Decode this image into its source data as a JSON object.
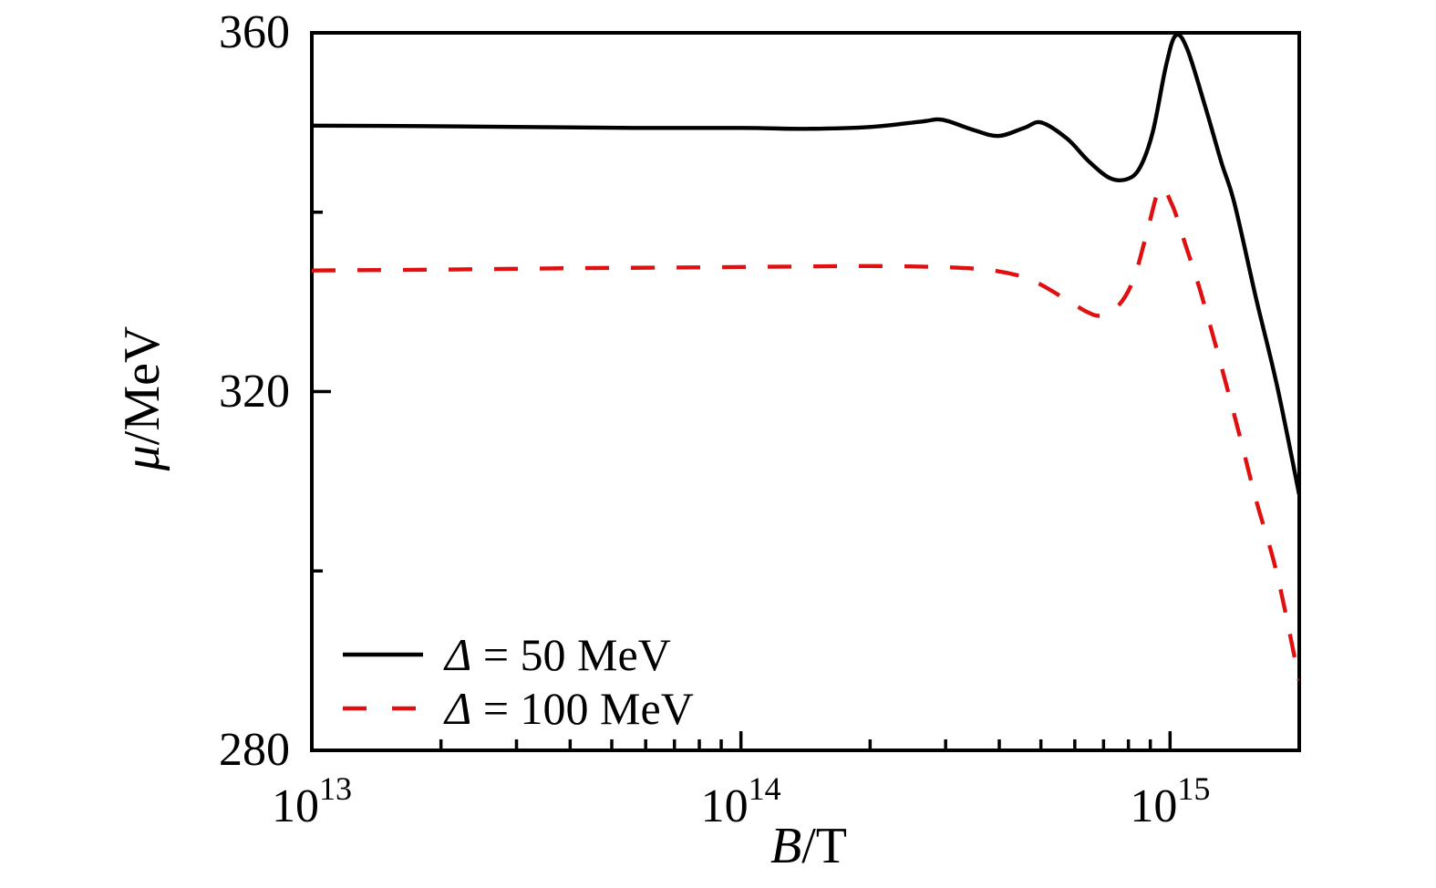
{
  "chart_data": {
    "type": "line",
    "title": "",
    "xlabel": {
      "symbol": "B",
      "rest": "/T"
    },
    "ylabel": {
      "symbol": "μ",
      "rest": "/MeV"
    },
    "grid": false,
    "legend_position": "bottom-left-inside",
    "x_axis": {
      "scale": "log10",
      "min": 10000000000000.0,
      "max": 2000000000000000.0,
      "unit": "T",
      "major_ticks": [
        {
          "log10": 13,
          "base": "10",
          "exp": "13"
        },
        {
          "log10": 14,
          "base": "10",
          "exp": "14"
        },
        {
          "log10": 15,
          "base": "10",
          "exp": "15"
        }
      ],
      "minor_ticks_log10": [
        13.301,
        13.477,
        13.602,
        13.699,
        13.778,
        13.845,
        13.903,
        13.954,
        14.301,
        14.477,
        14.602,
        14.699,
        14.778,
        14.845,
        14.903,
        14.954
      ]
    },
    "y_axis": {
      "scale": "linear",
      "min": 280,
      "max": 360,
      "unit": "MeV",
      "major_ticks": [
        {
          "value": 360,
          "label": "360"
        },
        {
          "value": 320,
          "label": "320"
        },
        {
          "value": 280,
          "label": "280"
        }
      ],
      "minor_tick_values": [
        340,
        300
      ]
    },
    "series": [
      {
        "name": "Δ = 50 MeV",
        "label_symbol": "Δ",
        "label_text": " = 50 MeV",
        "color": "#000000",
        "line_style": "solid",
        "points_log10B_muMeV": [
          [
            13.0,
            349.65
          ],
          [
            13.25,
            349.6
          ],
          [
            13.5,
            349.5
          ],
          [
            13.75,
            349.4
          ],
          [
            14.0,
            349.4
          ],
          [
            14.15,
            349.3
          ],
          [
            14.3,
            349.5
          ],
          [
            14.42,
            350.1
          ],
          [
            14.47,
            350.3
          ],
          [
            14.54,
            349.2
          ],
          [
            14.6,
            348.5
          ],
          [
            14.66,
            349.4
          ],
          [
            14.7,
            350.0
          ],
          [
            14.76,
            348.2
          ],
          [
            14.81,
            345.7
          ],
          [
            14.86,
            343.8
          ],
          [
            14.9,
            343.7
          ],
          [
            14.93,
            345.0
          ],
          [
            14.96,
            349.0
          ],
          [
            14.99,
            356.2
          ],
          [
            15.013,
            359.7
          ],
          [
            15.04,
            358.2
          ],
          [
            15.083,
            351.6
          ],
          [
            15.12,
            345.5
          ],
          [
            15.15,
            341.0
          ],
          [
            15.2,
            330.5
          ],
          [
            15.25,
            320.5
          ],
          [
            15.301,
            308.5
          ]
        ]
      },
      {
        "name": "Δ = 100 MeV",
        "label_symbol": "Δ",
        "label_text": " = 100 MeV",
        "color": "#e01010",
        "line_style": "dashed",
        "points_log10B_muMeV": [
          [
            13.0,
            333.5
          ],
          [
            13.3,
            333.6
          ],
          [
            13.6,
            333.75
          ],
          [
            13.9,
            333.85
          ],
          [
            14.15,
            333.95
          ],
          [
            14.3,
            334.0
          ],
          [
            14.45,
            333.9
          ],
          [
            14.57,
            333.6
          ],
          [
            14.65,
            332.9
          ],
          [
            14.7,
            331.9
          ],
          [
            14.76,
            330.2
          ],
          [
            14.81,
            328.8
          ],
          [
            14.84,
            328.5
          ],
          [
            14.88,
            329.6
          ],
          [
            14.915,
            332.5
          ],
          [
            14.945,
            337.5
          ],
          [
            14.976,
            342.6
          ],
          [
            15.005,
            340.8
          ],
          [
            15.035,
            336.5
          ],
          [
            15.07,
            331.3
          ],
          [
            15.11,
            324.5
          ],
          [
            15.16,
            315.5
          ],
          [
            15.2,
            308.0
          ],
          [
            15.25,
            299.5
          ],
          [
            15.301,
            287.8
          ]
        ]
      }
    ]
  }
}
